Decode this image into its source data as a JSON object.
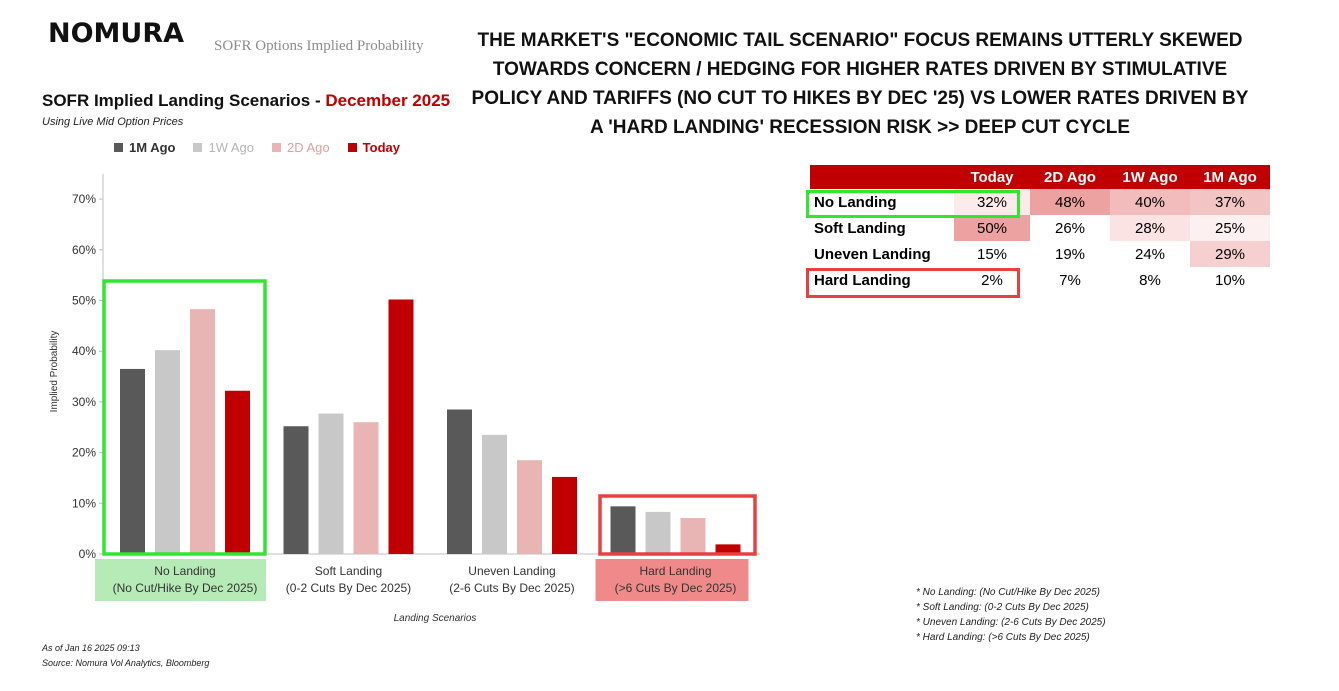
{
  "header": {
    "logo": "NOMURA",
    "brand_subtitle": "SOFR Options Implied Probability",
    "headline": "THE MARKET'S \"ECONOMIC TAIL SCENARIO\" FOCUS REMAINS UTTERLY SKEWED TOWARDS CONCERN / HEDGING FOR HIGHER RATES DRIVEN BY STIMULATIVE POLICY AND TARIFFS (NO CUT TO HIKES BY DEC '25) VS LOWER RATES DRIVEN BY A 'HARD LANDING' RECESSION RISK >> DEEP CUT CYCLE"
  },
  "chart_data": {
    "type": "bar",
    "title": "SOFR Implied Landing Scenarios - ",
    "title_highlight": "December 2025",
    "subtitle": "Using Live Mid Option Prices",
    "xlabel": "Landing Scenarios",
    "ylabel": "Implied Probability",
    "ylim": [
      0,
      0.75
    ],
    "yticks": [
      "0%",
      "10%",
      "20%",
      "30%",
      "40%",
      "50%",
      "60%",
      "70%"
    ],
    "categories": [
      [
        "No Landing",
        "(No Cut/Hike By Dec 2025)"
      ],
      [
        "Soft Landing",
        "(0-2 Cuts By Dec 2025)"
      ],
      [
        "Uneven Landing",
        "(2-6 Cuts By Dec 2025)"
      ],
      [
        "Hard Landing",
        "(>6 Cuts By Dec 2025)"
      ]
    ],
    "category_highlight": [
      "#b6eab6",
      "",
      "",
      "#f08a8a"
    ],
    "series": [
      {
        "name": "1M Ago",
        "color": "#595959",
        "values": [
          0.365,
          0.252,
          0.285,
          0.094
        ]
      },
      {
        "name": "1W Ago",
        "color": "#c8c8c8",
        "values": [
          0.402,
          0.277,
          0.235,
          0.083
        ]
      },
      {
        "name": "2D Ago",
        "color": "#e8b4b4",
        "values": [
          0.483,
          0.26,
          0.185,
          0.071
        ]
      },
      {
        "name": "Today",
        "color": "#c00000",
        "values": [
          0.322,
          0.502,
          0.152,
          0.019
        ]
      }
    ],
    "legend_position": "top",
    "grid": false
  },
  "table": {
    "headers": [
      "Today",
      "2D Ago",
      "1W Ago",
      "1M Ago"
    ],
    "rows": [
      {
        "label": "No Landing",
        "values": [
          "32%",
          "48%",
          "40%",
          "37%"
        ],
        "bg": [
          "#fdeaea",
          "#eda2a2",
          "#f2bcbc",
          "#f3c4c4"
        ]
      },
      {
        "label": "Soft Landing",
        "values": [
          "50%",
          "26%",
          "28%",
          "25%"
        ],
        "bg": [
          "#eda2a2",
          "#ffffff",
          "#fbe3e3",
          "#fdf0f0"
        ]
      },
      {
        "label": "Uneven Landing",
        "values": [
          "15%",
          "19%",
          "24%",
          "29%"
        ],
        "bg": [
          "#ffffff",
          "#ffffff",
          "#ffffff",
          "#f6d0d0"
        ]
      },
      {
        "label": "Hard Landing",
        "values": [
          "2%",
          "7%",
          "8%",
          "10%"
        ],
        "bg": [
          "#ffffff",
          "#ffffff",
          "#ffffff",
          "#ffffff"
        ]
      }
    ]
  },
  "footnotes": {
    "asof": "As of Jan 16 2025 09:13",
    "source": "Source: Nomura Vol Analytics, Bloomberg"
  },
  "notes": [
    "* No Landing: (No Cut/Hike By Dec 2025)",
    "* Soft Landing: (0-2 Cuts By Dec 2025)",
    "* Uneven Landing: (2-6 Cuts By Dec 2025)",
    "* Hard Landing: (>6 Cuts By Dec 2025)"
  ],
  "colors": {
    "accent_red": "#c00000",
    "highlight_green": "#2ee82e",
    "highlight_red": "#e84040"
  }
}
